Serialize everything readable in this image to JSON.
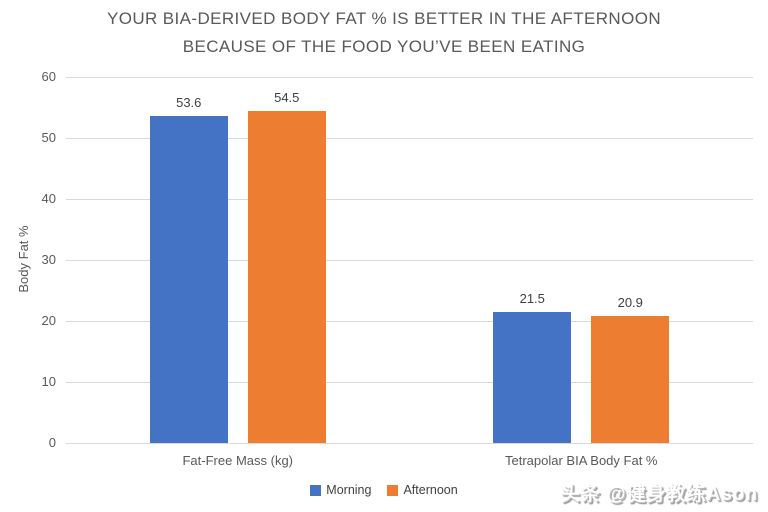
{
  "chart_data": {
    "type": "bar",
    "title_lines": [
      "YOUR BIA-DERIVED BODY FAT % IS BETTER IN THE AFTERNOON",
      "BECAUSE OF THE FOOD YOU’VE BEEN EATING"
    ],
    "ylabel": "Body Fat %",
    "ylim": [
      0,
      60
    ],
    "yticks": [
      0,
      10,
      20,
      30,
      40,
      50,
      60
    ],
    "grid": true,
    "legend_position": "bottom",
    "categories": [
      "Fat-Free Mass (kg)",
      "Tetrapolar BIA Body Fat %"
    ],
    "series": [
      {
        "name": "Morning",
        "color": "#4472C4",
        "values": [
          53.6,
          21.5
        ]
      },
      {
        "name": "Afternoon",
        "color": "#ED7D31",
        "values": [
          54.5,
          20.9
        ]
      }
    ]
  },
  "watermark": "头条 @健身教练Ason",
  "colors": {
    "grid": "#D9D9D9",
    "title_text": "#595959",
    "axis_text": "#595959",
    "value_label_text": "#404040"
  }
}
